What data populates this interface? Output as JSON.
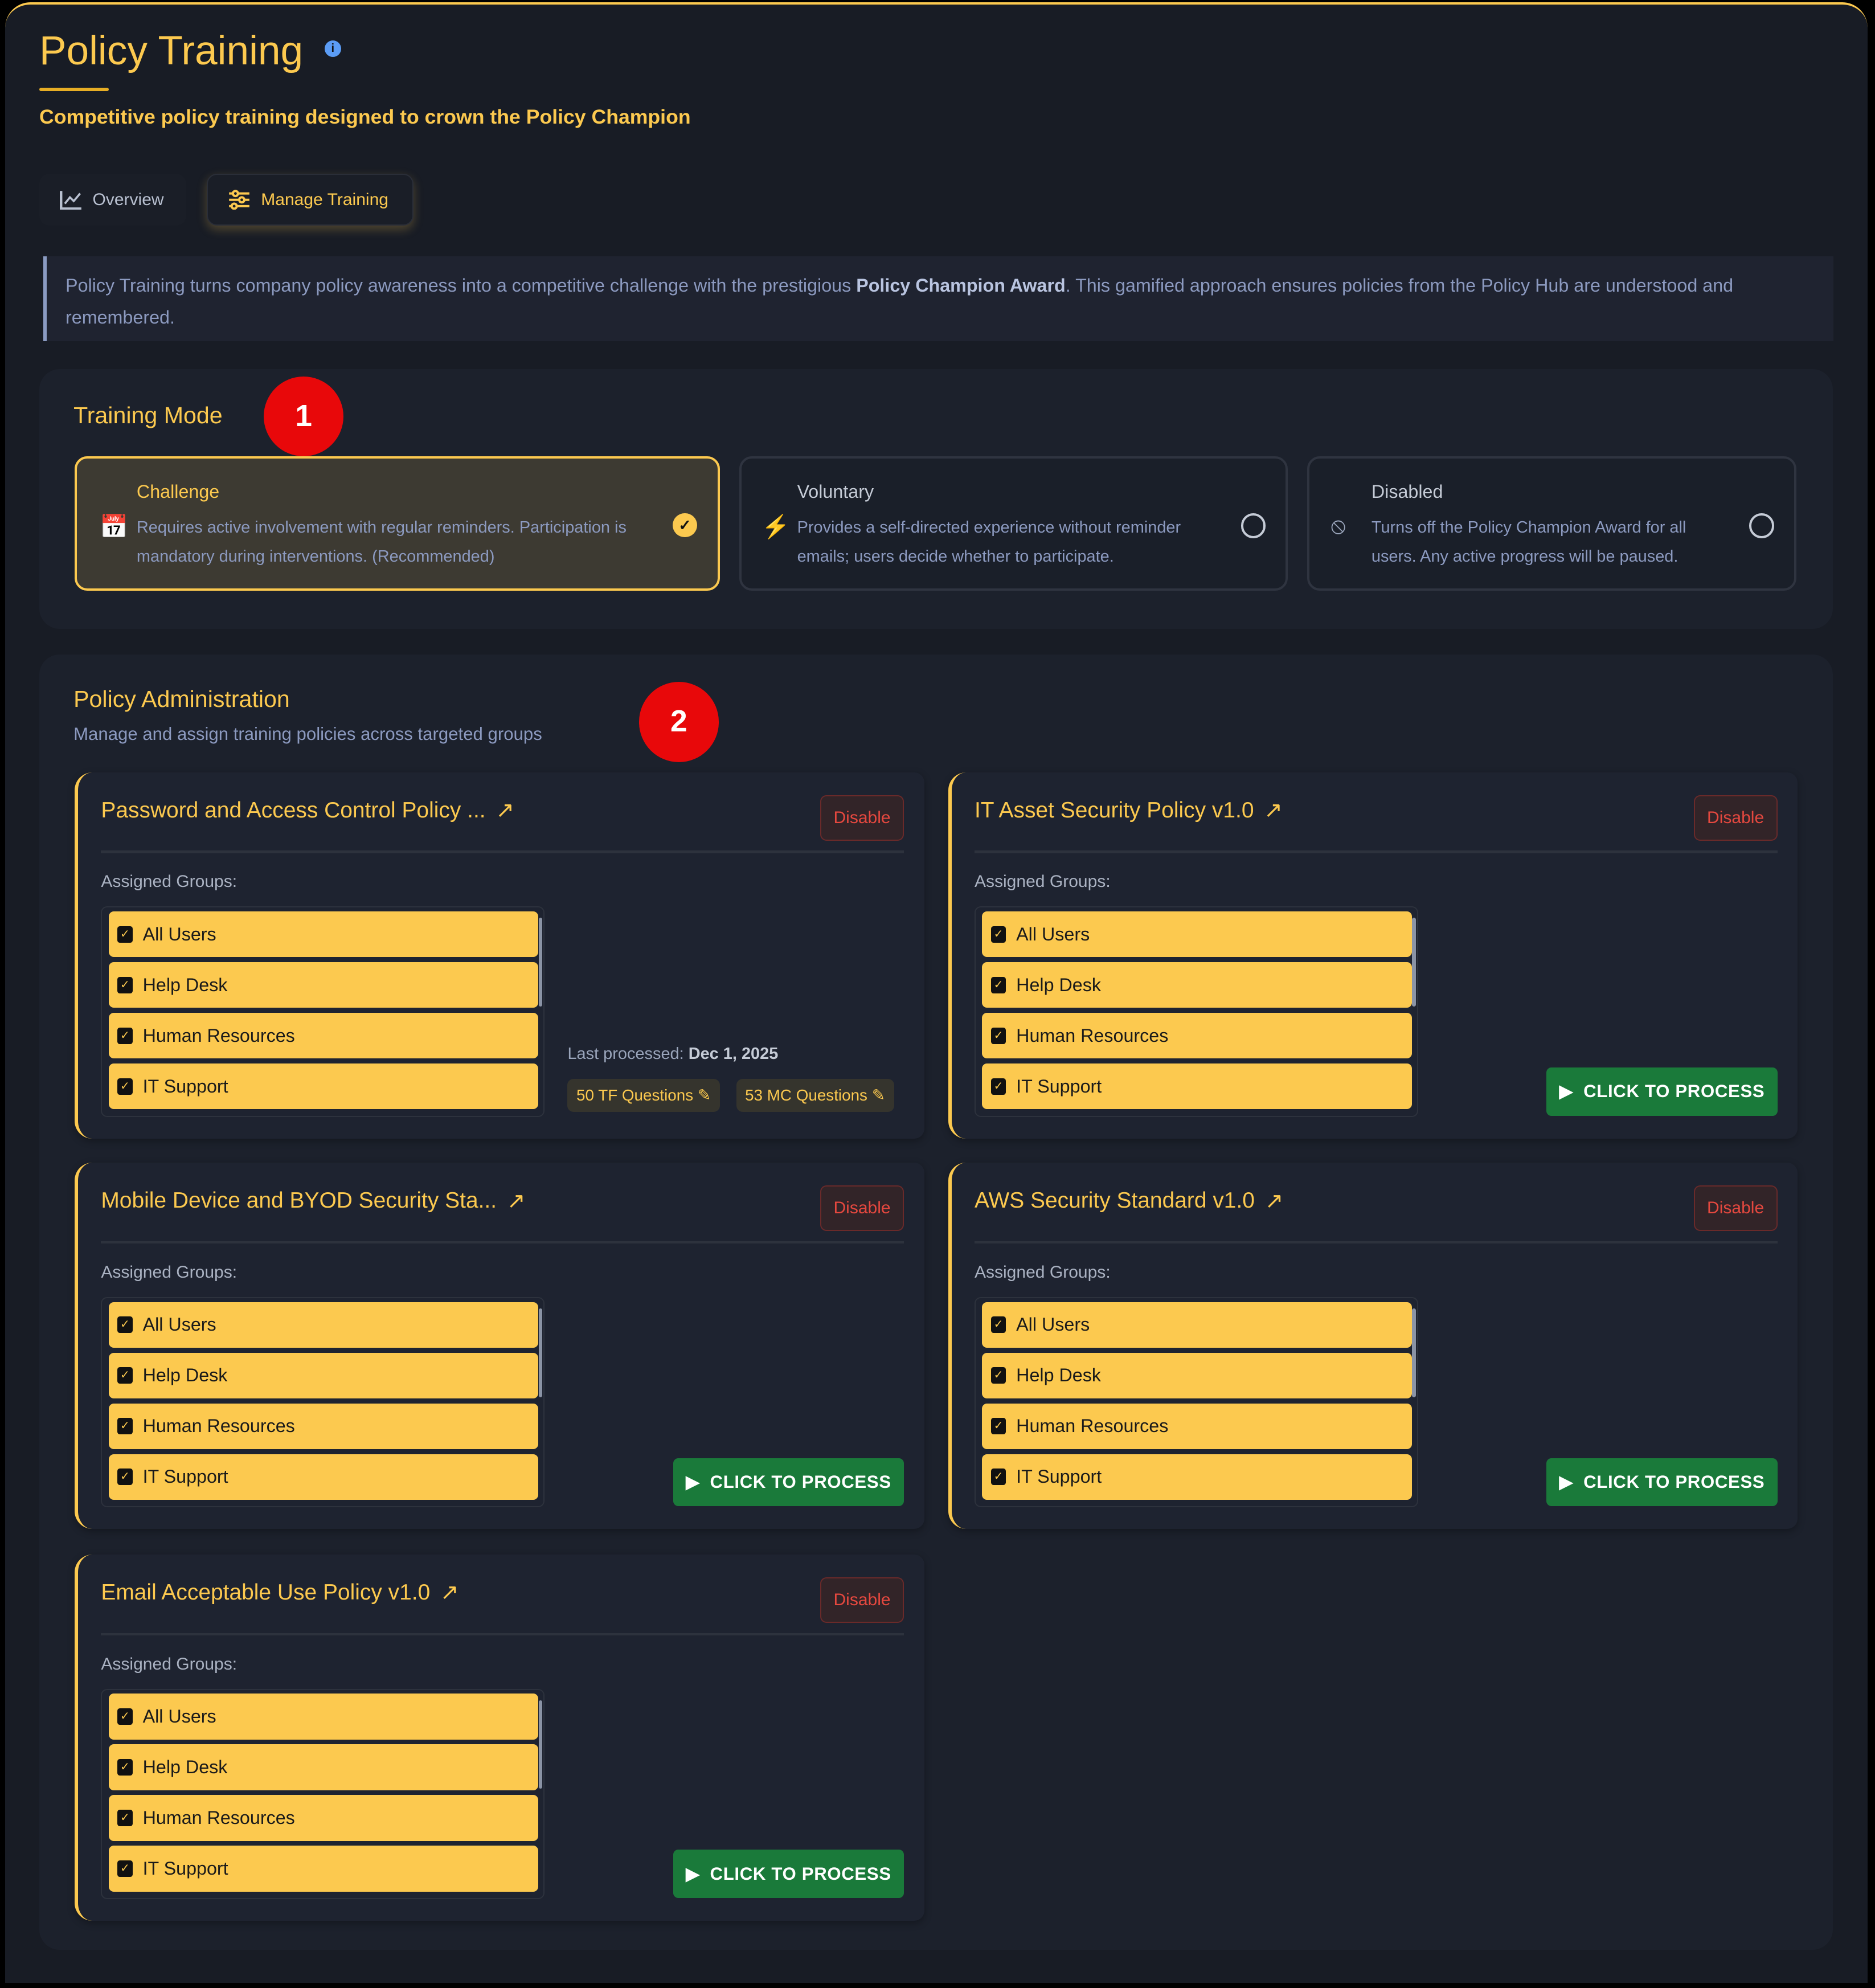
{
  "header": {
    "title": "Policy Training",
    "subtitle": "Competitive policy training designed to crown the Policy Champion",
    "info_icon": "info-icon"
  },
  "tabs": [
    {
      "label": "Overview",
      "icon": "chart-line-icon"
    },
    {
      "label": "Manage Training",
      "icon": "sliders-icon",
      "active": true
    }
  ],
  "banner": {
    "text_before": "Policy Training turns company policy awareness into a competitive challenge with the prestigious ",
    "bold": "Policy Champion Award",
    "text_after": ". This gamified approach ensures policies from the Policy Hub are understood and remembered."
  },
  "training_mode": {
    "title": "Training Mode",
    "badge": "1",
    "options": [
      {
        "title": "Challenge",
        "desc": "Requires active involvement with regular reminders. Participation is mandatory during interventions. (Recommended)",
        "selected": true,
        "icon": "calendar-check-icon"
      },
      {
        "title": "Voluntary",
        "desc": "Provides a self-directed experience without reminder emails; users decide whether to participate.",
        "selected": false,
        "icon": "bolt-icon"
      },
      {
        "title": "Disabled",
        "desc": "Turns off the Policy Champion Award for all users. Any active progress will be paused.",
        "selected": false,
        "icon": "ban-icon"
      }
    ]
  },
  "admin": {
    "title": "Policy Administration",
    "subtitle": "Manage and assign training policies across targeted groups",
    "badge": "2",
    "assigned_label": "Assigned Groups:",
    "disable_label": "Disable",
    "process_label": "CLICK TO PROCESS",
    "last_processed_label": "Last processed:",
    "policies": [
      {
        "title": "Password and Access Control Policy ...",
        "groups": [
          "All Users",
          "Help Desk",
          "Human Resources",
          "IT Support"
        ],
        "last_processed": "Dec 1, 2025",
        "tf": "50 TF Questions",
        "mc": "53 MC Questions"
      },
      {
        "title": "IT Asset Security Policy v1.0",
        "groups": [
          "All Users",
          "Help Desk",
          "Human Resources",
          "IT Support"
        ]
      },
      {
        "title": "Mobile Device and BYOD Security Sta...",
        "groups": [
          "All Users",
          "Help Desk",
          "Human Resources",
          "IT Support"
        ]
      },
      {
        "title": "AWS Security Standard v1.0",
        "groups": [
          "All Users",
          "Help Desk",
          "Human Resources",
          "IT Support"
        ]
      },
      {
        "title": "Email Acceptable Use Policy v1.0",
        "groups": [
          "All Users",
          "Help Desk",
          "Human Resources",
          "IT Support"
        ]
      }
    ]
  },
  "colors": {
    "accent": "#fcc94f",
    "process": "#1a7a3a",
    "danger": "#e5483f",
    "badge": "#e8080a"
  }
}
